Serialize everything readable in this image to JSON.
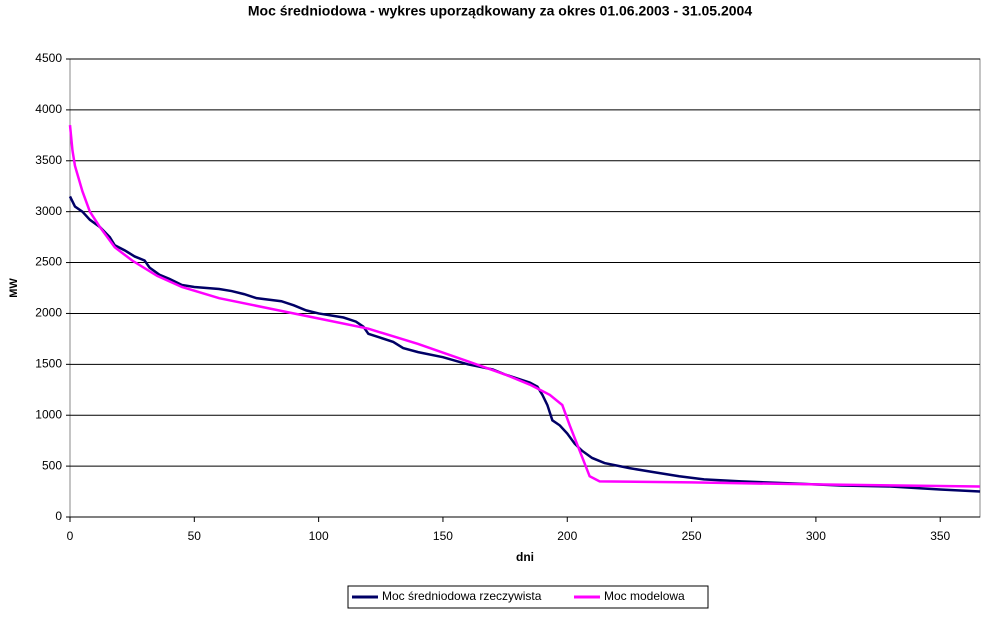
{
  "chart_data": {
    "type": "line",
    "title": "Moc średniodowa - wykres uporządkowany za okres 01.06.2003 - 31.05.2004",
    "x_label": "dni",
    "y_label": "MW",
    "xlim": [
      0,
      366
    ],
    "ylim": [
      0,
      4500
    ],
    "xticks": [
      0,
      50,
      100,
      150,
      200,
      250,
      300,
      350
    ],
    "yticks": [
      0,
      500,
      1000,
      1500,
      2000,
      2500,
      3000,
      3500,
      4000,
      4500
    ],
    "grid": true,
    "legend": "bottom",
    "series": [
      {
        "name": "Moc średniodowa rzeczywista",
        "color": "#000066",
        "x": [
          0,
          2,
          5,
          8,
          12,
          16,
          18,
          22,
          26,
          30,
          32,
          36,
          40,
          45,
          50,
          60,
          65,
          70,
          75,
          85,
          90,
          95,
          100,
          110,
          115,
          118,
          120,
          125,
          130,
          134,
          140,
          150,
          160,
          170,
          175,
          180,
          185,
          188,
          190,
          192,
          194,
          197,
          200,
          203,
          206,
          210,
          215,
          225,
          235,
          245,
          255,
          270,
          290,
          310,
          330,
          350,
          366
        ],
        "values": [
          3150,
          3050,
          3000,
          2920,
          2850,
          2750,
          2670,
          2620,
          2560,
          2520,
          2450,
          2380,
          2340,
          2280,
          2260,
          2240,
          2220,
          2190,
          2150,
          2120,
          2080,
          2030,
          2000,
          1960,
          1920,
          1870,
          1800,
          1760,
          1720,
          1660,
          1620,
          1570,
          1500,
          1450,
          1400,
          1360,
          1320,
          1280,
          1200,
          1100,
          950,
          900,
          820,
          720,
          650,
          580,
          530,
          480,
          440,
          400,
          370,
          350,
          330,
          310,
          300,
          270,
          250
        ]
      },
      {
        "name": "Moc modelowa",
        "color": "#ff00ff",
        "x": [
          0,
          1,
          2,
          5,
          8,
          12,
          18,
          25,
          35,
          45,
          60,
          80,
          100,
          120,
          140,
          160,
          175,
          185,
          193,
          198,
          201,
          205,
          209,
          213,
          250,
          300,
          366
        ],
        "values": [
          3850,
          3600,
          3450,
          3200,
          3000,
          2850,
          2650,
          2520,
          2370,
          2260,
          2150,
          2050,
          1950,
          1850,
          1700,
          1530,
          1400,
          1300,
          1200,
          1100,
          900,
          650,
          400,
          350,
          340,
          320,
          300
        ]
      }
    ]
  }
}
